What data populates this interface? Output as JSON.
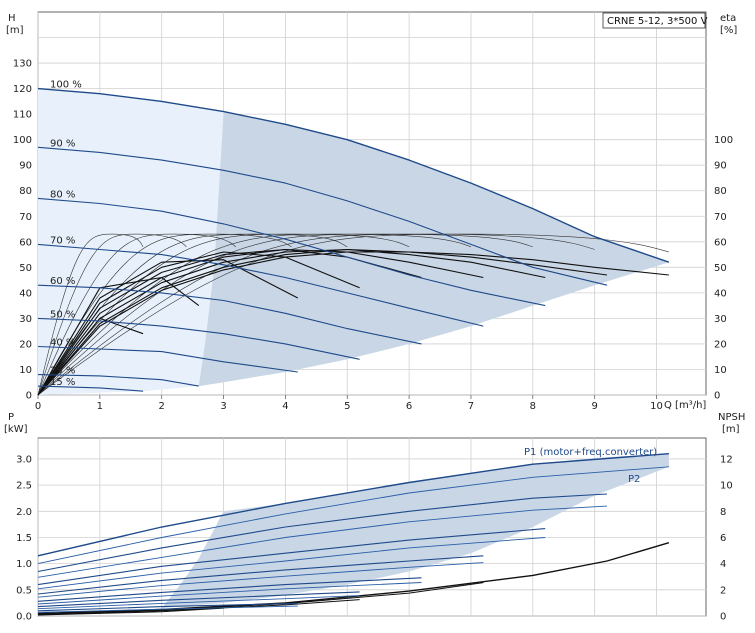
{
  "chart_data": [
    {
      "type": "line",
      "title": "CRNE 5-12, 3*500 V",
      "xlabel": "Q [m³/h]",
      "ylabel_left_name": "H",
      "ylabel_left_unit": "[m]",
      "ylabel_right_name": "eta",
      "ylabel_right_unit": "[%]",
      "xlim": [
        0,
        10.8
      ],
      "ylim_left": [
        0,
        150
      ],
      "ylim_right": [
        0,
        150
      ],
      "x_ticks": [
        "0",
        "1",
        "2",
        "3",
        "4",
        "5",
        "6",
        "7",
        "8",
        "9",
        "10"
      ],
      "y_left_ticks": [
        "0",
        "10",
        "20",
        "30",
        "40",
        "50",
        "60",
        "70",
        "80",
        "90",
        "100",
        "110",
        "120",
        "130"
      ],
      "y_right_ticks": [
        "0",
        "10",
        "20",
        "30",
        "40",
        "50",
        "60",
        "70",
        "80",
        "90",
        "100"
      ],
      "grid": true,
      "colors": {
        "head": "#1f4a8a",
        "efficiency": "#111111",
        "band": "#c9d6e6",
        "band_light": "#e8f1fb"
      },
      "head_series": [
        {
          "name": "100 %",
          "x": [
            0,
            1,
            2,
            3,
            4,
            5,
            6,
            7,
            8,
            9,
            10.2
          ],
          "y": [
            120,
            118,
            115,
            111,
            106,
            100,
            92,
            83,
            73,
            62,
            52
          ]
        },
        {
          "name": "90 %",
          "x": [
            0,
            1,
            2,
            3,
            4,
            5,
            6,
            7,
            8,
            9.2
          ],
          "y": [
            97,
            95,
            92,
            88,
            83,
            76,
            68,
            59,
            50,
            43
          ]
        },
        {
          "name": "80 %",
          "x": [
            0,
            1,
            2,
            3,
            4,
            5,
            6,
            7,
            8.2
          ],
          "y": [
            77,
            75,
            72,
            67,
            61,
            54,
            47,
            41,
            35
          ]
        },
        {
          "name": "70 %",
          "x": [
            0,
            1,
            2,
            3,
            4,
            5,
            6,
            7.2
          ],
          "y": [
            59,
            57,
            55,
            51,
            46,
            40,
            34,
            27
          ]
        },
        {
          "name": "60 %",
          "x": [
            0,
            1,
            2,
            3,
            4,
            5,
            6.2
          ],
          "y": [
            43,
            42,
            40,
            37,
            32,
            26,
            20
          ]
        },
        {
          "name": "50 %",
          "x": [
            0,
            1,
            2,
            3,
            4,
            5.2
          ],
          "y": [
            30,
            29,
            27,
            24,
            20,
            14
          ]
        },
        {
          "name": "40 %",
          "x": [
            0,
            1,
            2,
            3,
            4.2
          ],
          "y": [
            19,
            18,
            17,
            13,
            9
          ]
        },
        {
          "name": "25 %",
          "x": [
            0,
            1,
            2,
            2.6
          ],
          "y": [
            8,
            7.5,
            6,
            3.5
          ]
        },
        {
          "name": "15 %",
          "x": [
            0,
            1,
            1.7
          ],
          "y": [
            3.5,
            2.8,
            1.5
          ]
        }
      ],
      "efficiency_series": [
        {
          "x": [
            0,
            1,
            2,
            3,
            4,
            5,
            6,
            7,
            8,
            9,
            10.2
          ],
          "y": [
            0,
            27,
            41,
            49,
            54,
            56,
            56,
            55,
            53,
            50,
            47
          ]
        },
        {
          "x": [
            0,
            1,
            2,
            3,
            4,
            5,
            6,
            7,
            8,
            9.2
          ],
          "y": [
            0,
            28,
            42,
            50,
            55,
            57,
            56,
            54,
            51,
            47
          ]
        },
        {
          "x": [
            0,
            1,
            2,
            3,
            4,
            5,
            6,
            7,
            8.2
          ],
          "y": [
            0,
            30,
            44,
            52,
            56,
            57,
            55,
            52,
            46
          ]
        },
        {
          "x": [
            0,
            1,
            2,
            3,
            4,
            5,
            6,
            7.2
          ],
          "y": [
            0,
            32,
            46,
            54,
            57,
            56,
            52,
            46
          ]
        },
        {
          "x": [
            0,
            1,
            2,
            3,
            4,
            5,
            6.2
          ],
          "y": [
            0,
            34,
            48,
            55,
            57,
            54,
            46
          ]
        },
        {
          "x": [
            0,
            1,
            2,
            3,
            4,
            5.2
          ],
          "y": [
            0,
            36,
            50,
            56,
            54,
            42
          ]
        },
        {
          "x": [
            0,
            1,
            2,
            3,
            4.2
          ],
          "y": [
            0,
            38,
            52,
            53,
            38
          ]
        },
        {
          "x": [
            0,
            1,
            2,
            2.6
          ],
          "y": [
            0,
            42,
            46,
            35
          ]
        },
        {
          "x": [
            0,
            1,
            1.7
          ],
          "y": [
            0,
            30,
            24
          ]
        }
      ],
      "efficiency_thin_series": [
        {
          "x": [
            0,
            0.6,
            1.2,
            1.7
          ],
          "y": [
            0,
            52,
            63,
            58
          ]
        },
        {
          "x": [
            0,
            0.8,
            1.6,
            2.4
          ],
          "y": [
            0,
            52,
            63,
            58
          ]
        },
        {
          "x": [
            0,
            1.1,
            2.2,
            3.2
          ],
          "y": [
            0,
            52,
            63,
            58
          ]
        },
        {
          "x": [
            0,
            1.4,
            2.8,
            4.1
          ],
          "y": [
            0,
            52,
            63,
            58
          ]
        },
        {
          "x": [
            0,
            1.7,
            3.5,
            5.0
          ],
          "y": [
            0,
            52,
            63,
            58
          ]
        },
        {
          "x": [
            0,
            2.0,
            4.1,
            6.0
          ],
          "y": [
            0,
            52,
            63,
            58
          ]
        },
        {
          "x": [
            0,
            2.4,
            4.8,
            7.0
          ],
          "y": [
            0,
            52,
            63,
            58
          ]
        },
        {
          "x": [
            0,
            2.7,
            5.5,
            8.0
          ],
          "y": [
            0,
            52,
            63,
            58
          ]
        },
        {
          "x": [
            0,
            3.1,
            6.2,
            9.0
          ],
          "y": [
            0,
            52,
            63,
            57
          ]
        },
        {
          "x": [
            0,
            3.4,
            6.9,
            10.2
          ],
          "y": [
            0,
            52,
            63,
            56
          ]
        }
      ],
      "operating_band": {
        "upper": [
          [
            0,
            120
          ],
          [
            1,
            118
          ],
          [
            2,
            115
          ],
          [
            3,
            111
          ],
          [
            4,
            106
          ],
          [
            5,
            100
          ],
          [
            6,
            92
          ],
          [
            7,
            83
          ],
          [
            8,
            73
          ],
          [
            9,
            62
          ],
          [
            10.2,
            52
          ]
        ],
        "lower": [
          [
            10.2,
            52
          ],
          [
            9,
            43
          ],
          [
            8,
            35
          ],
          [
            7,
            27
          ],
          [
            6,
            20
          ],
          [
            5,
            14
          ],
          [
            4,
            9
          ],
          [
            3,
            5
          ],
          [
            2.6,
            3.5
          ],
          [
            1.7,
            1.5
          ],
          [
            0,
            0
          ]
        ],
        "dark_upper": [
          [
            3,
            111
          ],
          [
            4,
            106
          ],
          [
            5,
            100
          ],
          [
            6,
            92
          ],
          [
            7,
            83
          ],
          [
            8,
            73
          ],
          [
            9,
            62
          ],
          [
            10.2,
            52
          ]
        ],
        "dark_lower": [
          [
            10.2,
            52
          ],
          [
            9,
            43
          ],
          [
            8,
            35
          ],
          [
            7,
            27
          ],
          [
            6,
            20
          ],
          [
            5,
            14
          ],
          [
            4,
            9
          ],
          [
            3,
            5
          ],
          [
            2.6,
            3.5
          ]
        ],
        "dark_left_edge": [
          [
            2.6,
            3.5
          ],
          [
            2.7,
            20
          ],
          [
            2.85,
            50
          ],
          [
            3,
            111
          ]
        ]
      }
    },
    {
      "type": "line",
      "xlabel": "",
      "ylabel_left_name": "P",
      "ylabel_left_unit": "[kW]",
      "ylabel_right_name": "NPSH",
      "ylabel_right_unit": "[m]",
      "xlim": [
        0,
        10.8
      ],
      "ylim_left": [
        0,
        3.4
      ],
      "ylim_right": [
        0,
        13.6
      ],
      "y_left_ticks": [
        "0.0",
        "0.5",
        "1.0",
        "1.5",
        "2.0",
        "2.5",
        "3.0"
      ],
      "y_right_ticks": [
        "0",
        "2",
        "4",
        "6",
        "8",
        "10",
        "12"
      ],
      "grid": true,
      "colors": {
        "p1": "#1f4a8a",
        "p2": "#2a5fa8",
        "npsh": "#111111",
        "band": "#c9d6e6"
      },
      "p1_label": "P1 (motor+freq.converter)",
      "p2_label": "P2",
      "p1_series": [
        {
          "x": [
            0,
            2,
            4,
            6,
            8,
            10.2
          ],
          "y": [
            1.15,
            1.7,
            2.15,
            2.55,
            2.9,
            3.1
          ]
        },
        {
          "x": [
            0,
            2,
            4,
            6,
            8,
            9.2
          ],
          "y": [
            0.85,
            1.3,
            1.7,
            2.0,
            2.25,
            2.33
          ]
        },
        {
          "x": [
            0,
            2,
            4,
            6,
            8.2
          ],
          "y": [
            0.6,
            0.95,
            1.2,
            1.45,
            1.67
          ]
        },
        {
          "x": [
            0,
            2,
            4,
            6,
            7.2
          ],
          "y": [
            0.42,
            0.68,
            0.88,
            1.05,
            1.15
          ]
        },
        {
          "x": [
            0,
            2,
            4,
            6.2
          ],
          "y": [
            0.28,
            0.45,
            0.6,
            0.73
          ]
        },
        {
          "x": [
            0,
            2,
            4,
            5.2
          ],
          "y": [
            0.18,
            0.3,
            0.4,
            0.46
          ]
        },
        {
          "x": [
            0,
            2,
            4.2
          ],
          "y": [
            0.1,
            0.18,
            0.24
          ]
        }
      ],
      "p2_series": [
        {
          "x": [
            0,
            2,
            4,
            6,
            8,
            10.2
          ],
          "y": [
            1.0,
            1.5,
            1.95,
            2.35,
            2.65,
            2.85
          ]
        },
        {
          "x": [
            0,
            2,
            4,
            6,
            8,
            9.2
          ],
          "y": [
            0.74,
            1.12,
            1.5,
            1.8,
            2.02,
            2.1
          ]
        },
        {
          "x": [
            0,
            2,
            4,
            6,
            8.2
          ],
          "y": [
            0.52,
            0.82,
            1.05,
            1.3,
            1.5
          ]
        },
        {
          "x": [
            0,
            2,
            4,
            6,
            7.2
          ],
          "y": [
            0.36,
            0.58,
            0.76,
            0.93,
            1.02
          ]
        },
        {
          "x": [
            0,
            2,
            4,
            6.2
          ],
          "y": [
            0.23,
            0.38,
            0.52,
            0.64
          ]
        },
        {
          "x": [
            0,
            2,
            4,
            5.2
          ],
          "y": [
            0.14,
            0.24,
            0.33,
            0.39
          ]
        },
        {
          "x": [
            0,
            2,
            4.2
          ],
          "y": [
            0.07,
            0.13,
            0.19
          ]
        }
      ],
      "npsh_series": [
        {
          "x": [
            0,
            2,
            4,
            6,
            8,
            9.2,
            10.2
          ],
          "y": [
            0.2,
            0.5,
            1.0,
            1.9,
            3.1,
            4.2,
            5.6
          ]
        },
        {
          "x": [
            0,
            2,
            4,
            6,
            7.2
          ],
          "y": [
            0.15,
            0.45,
            0.95,
            1.75,
            2.55
          ]
        },
        {
          "x": [
            0,
            2,
            4,
            5.2
          ],
          "y": [
            0.1,
            0.4,
            0.85,
            1.25
          ]
        },
        {
          "x": [
            0,
            2,
            3
          ],
          "y": [
            0.08,
            0.32,
            0.6
          ]
        }
      ],
      "power_band": {
        "upper": [
          [
            3,
            2.0
          ],
          [
            4,
            2.15
          ],
          [
            5,
            2.35
          ],
          [
            6,
            2.55
          ],
          [
            7,
            2.72
          ],
          [
            8,
            2.9
          ],
          [
            9,
            3.02
          ],
          [
            10.2,
            3.1
          ]
        ],
        "lower": [
          [
            10.2,
            2.85
          ],
          [
            9,
            2.3
          ],
          [
            8,
            1.7
          ],
          [
            7,
            1.2
          ],
          [
            6,
            0.85
          ],
          [
            5,
            0.6
          ],
          [
            4,
            0.4
          ],
          [
            3,
            0.25
          ],
          [
            2.0,
            0.15
          ]
        ],
        "left": [
          [
            2.0,
            0.15
          ],
          [
            2.3,
            0.6
          ],
          [
            2.6,
            1.1
          ],
          [
            3,
            2.0
          ]
        ]
      }
    }
  ]
}
